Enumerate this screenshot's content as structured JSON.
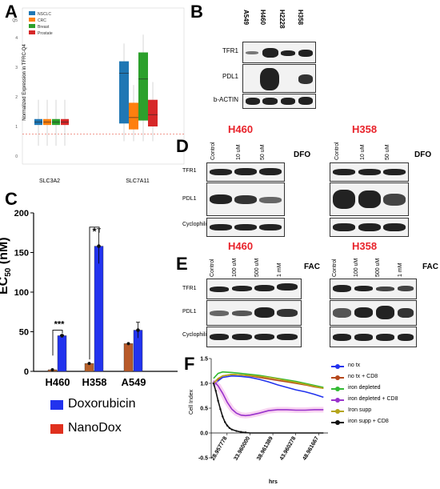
{
  "panels": {
    "a": "A",
    "b": "B",
    "c": "C",
    "d": "D",
    "e": "E",
    "f": "F"
  },
  "panel_a": {
    "ylabel": "Normalized Expression in TFRC-Q4",
    "yticks": [
      "0",
      "1",
      "2",
      "3",
      "4",
      "Q5"
    ],
    "xcats": [
      "SLC3A2",
      "SLC7A11"
    ],
    "legend": [
      {
        "name": "NSCLC",
        "color": "#1f77b4"
      },
      {
        "name": "CRC",
        "color": "#ff7f0e"
      },
      {
        "name": "Breast",
        "color": "#2ca02c"
      },
      {
        "name": "Prostate",
        "color": "#d62728"
      }
    ]
  },
  "panel_b": {
    "lanes": [
      "A549",
      "H460",
      "H2228",
      "H358"
    ],
    "rows": [
      "TFR1",
      "PDL1",
      "b-ACTIN"
    ]
  },
  "panel_d": {
    "tag": "DFO",
    "left_cell": "H460",
    "right_cell": "H358",
    "lanes": [
      "Control",
      "10 uM",
      "50 uM"
    ],
    "rows": [
      "TFR1",
      "PDL1",
      "Cyclophilin"
    ]
  },
  "panel_e": {
    "tag": "FAC",
    "left_cell": "H460",
    "right_cell": "H358",
    "lanes": [
      "Control",
      "100 uM",
      "500 uM",
      "1 mM"
    ],
    "rows": [
      "TFR1",
      "PDL1",
      "Cyclophilin"
    ]
  },
  "panel_c": {
    "ylabel_main": "EC",
    "ylabel_sub": "50",
    "ylabel_unit": " (nM)",
    "legend_dox": "Doxorubicin",
    "legend_nano": "NanoDox",
    "sig_h460": "***",
    "sig_h358": "*",
    "colors": {
      "dox": "#2233ee",
      "nano": "#e0301e"
    }
  },
  "panel_f": {
    "ylabel": "Cell Index",
    "xlabel": "hrs",
    "legend": [
      {
        "name": "no tx",
        "color": "#2233ee"
      },
      {
        "name": "no tx + CD8",
        "color": "#b5471b"
      },
      {
        "name": "iron depleted",
        "color": "#33bb33"
      },
      {
        "name": "iron depleted + CD8",
        "color": "#9933cc"
      },
      {
        "name": "Iron supp",
        "color": "#b5a51b"
      },
      {
        "name": "iron supp + CD8",
        "color": "#111111"
      }
    ]
  },
  "chart_data": [
    {
      "type": "bar",
      "categories": [
        "H460",
        "H358",
        "A549"
      ],
      "series": [
        {
          "name": "Doxorubicin",
          "values": [
            45,
            158,
            52
          ]
        },
        {
          "name": "NanoDox",
          "values": [
            2,
            10,
            35
          ]
        }
      ],
      "ylabel": "EC50 (nM)",
      "ylim": [
        0,
        200
      ],
      "yticks": [
        0,
        50,
        100,
        150,
        200
      ]
    },
    {
      "type": "line",
      "xlabel": "hrs",
      "ylabel": "Cell Index",
      "ylim": [
        -0.5,
        1.5
      ],
      "yticks": [
        "-0.5",
        "0.0",
        "0.5",
        "1.0",
        "1.5"
      ],
      "xticks": [
        "28.957778",
        "33.960000",
        "38.961389",
        "43.960278",
        "48.961667"
      ],
      "xlim": [
        25.5,
        51
      ],
      "series": [
        {
          "name": "no tx",
          "x": [
            26,
            27,
            28,
            30,
            32,
            34,
            36,
            38,
            40,
            42,
            44,
            46,
            48,
            50
          ],
          "y": [
            0.95,
            1.05,
            1.12,
            1.15,
            1.14,
            1.12,
            1.08,
            1.03,
            0.97,
            0.92,
            0.87,
            0.83,
            0.78,
            0.72
          ]
        },
        {
          "name": "no tx + CD8",
          "x": [
            26,
            27,
            28,
            30,
            32,
            34,
            36,
            38,
            40,
            42,
            44,
            46,
            48,
            50
          ],
          "y": [
            0.98,
            1.08,
            1.15,
            1.18,
            1.17,
            1.15,
            1.12,
            1.09,
            1.06,
            1.03,
            1.0,
            0.97,
            0.93,
            0.9
          ]
        },
        {
          "name": "iron depleted",
          "x": [
            26,
            27,
            28,
            30,
            32,
            34,
            36,
            38,
            40,
            42,
            44,
            46,
            48,
            50
          ],
          "y": [
            1.1,
            1.2,
            1.23,
            1.22,
            1.2,
            1.18,
            1.16,
            1.13,
            1.1,
            1.07,
            1.04,
            1.0,
            0.96,
            0.92
          ]
        },
        {
          "name": "iron depleted + CD8",
          "x": [
            26,
            27,
            28,
            29,
            30,
            31,
            32,
            33,
            34,
            36,
            38,
            40,
            42,
            44,
            46,
            48,
            50
          ],
          "y": [
            1.05,
            0.95,
            0.8,
            0.62,
            0.48,
            0.4,
            0.36,
            0.35,
            0.36,
            0.4,
            0.45,
            0.47,
            0.47,
            0.46,
            0.46,
            0.47,
            0.47
          ]
        },
        {
          "name": "Iron supp",
          "x": [
            26,
            27,
            28,
            30,
            32,
            34,
            36,
            38,
            40,
            42,
            44,
            46,
            48,
            50
          ],
          "y": [
            1.0,
            1.1,
            1.15,
            1.18,
            1.17,
            1.16,
            1.14,
            1.12,
            1.09,
            1.05,
            1.02,
            0.98,
            0.94,
            0.9
          ]
        },
        {
          "name": "iron supp + CD8",
          "x": [
            26,
            26.5,
            27,
            27.5,
            28,
            28.5,
            29,
            29.5,
            30,
            31,
            32,
            33,
            34,
            36,
            38,
            40,
            42,
            44,
            46,
            48,
            50
          ],
          "y": [
            1.0,
            0.85,
            0.65,
            0.48,
            0.33,
            0.22,
            0.15,
            0.1,
            0.07,
            0.04,
            0.02,
            0.01,
            0.0,
            0.0,
            0.0,
            0.0,
            0.0,
            0.0,
            0.0,
            0.0,
            0.0
          ]
        }
      ]
    }
  ]
}
